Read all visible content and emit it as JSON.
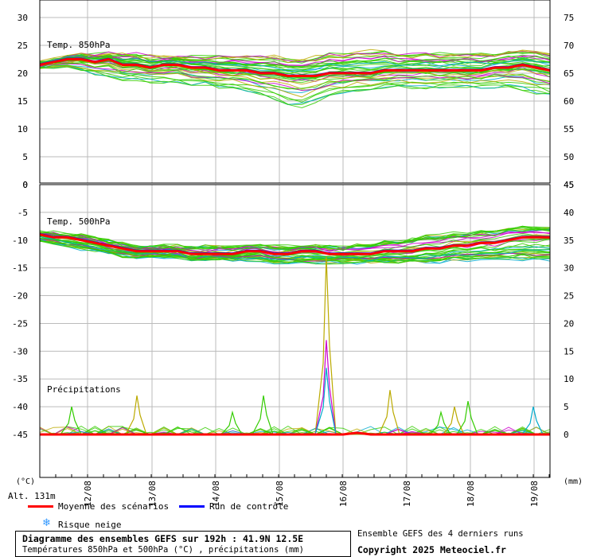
{
  "chart_data": {
    "type": "line",
    "footer": {
      "title": "Diagramme des ensembles GEFS sur 192h : 41.9N 12.5E",
      "subtitle": "Températures 850hPa et 500hPa (°C) , précipitations (mm)",
      "right_top": "Ensemble GEFS des 4 derniers runs",
      "copyright": "Copyright 2025 Meteociel.fr"
    },
    "left_unit": "(°C)",
    "right_unit": "(mm)",
    "altitude": "Alt. 131m",
    "x_ticks": [
      "12/08",
      "13/08",
      "14/08",
      "15/08",
      "16/08",
      "17/08",
      "18/08",
      "19/08"
    ],
    "legend": [
      {
        "label": "Moyenne des scénarios",
        "color": "#ff0000",
        "icon": "red-line"
      },
      {
        "label": "Run de contrôle",
        "color": "#0000ff",
        "icon": "blue-line"
      },
      {
        "label": "Risque neige",
        "color": "#3399ff",
        "icon": "snowflake-icon"
      }
    ],
    "panels": [
      {
        "name": "Temp. 850hPa",
        "left_ticks": [
          "30",
          "25",
          "20",
          "15",
          "10",
          "5",
          "0"
        ],
        "right_ticks": [
          "75",
          "70",
          "65",
          "60",
          "55",
          "50",
          "45"
        ],
        "ylim": [
          0,
          30
        ],
        "mean": [
          21.5,
          22,
          22.5,
          22.5,
          22,
          22.5,
          21.5,
          21.5,
          21,
          21.5,
          21.5,
          21,
          21,
          20.5,
          20.5,
          20.5,
          20,
          20,
          19.5,
          19.5,
          19.5,
          20,
          20,
          20,
          20,
          20.5,
          20.5,
          20.5,
          20.5,
          20.5,
          20.5,
          20.5,
          20.5,
          21,
          21,
          21.5,
          21,
          20.5
        ],
        "spread_low": [
          21,
          21,
          21,
          20.5,
          20,
          19.5,
          19,
          19,
          18.5,
          18.5,
          18.5,
          18,
          18,
          17.5,
          17.5,
          17,
          16.5,
          15.5,
          14.5,
          14,
          15,
          16,
          16.5,
          17,
          17,
          17.5,
          17.5,
          17.5,
          17.5,
          17.5,
          17.5,
          17.5,
          17.5,
          17.5,
          17.5,
          17,
          16.5,
          16
        ],
        "spread_high": [
          22,
          22.5,
          23,
          23.5,
          23.5,
          23.5,
          23.5,
          23.5,
          23,
          23,
          23,
          23,
          23,
          23,
          23,
          23,
          23,
          23,
          22.5,
          22.5,
          23,
          23.5,
          23.5,
          24,
          24,
          24,
          23.5,
          23.5,
          23.5,
          23.5,
          23.5,
          23.5,
          23.5,
          23.5,
          24,
          24,
          24,
          23.5
        ]
      },
      {
        "name": "Temp. 500hPa",
        "left_ticks": [
          "0",
          "-5",
          "-10",
          "-15",
          "-20",
          "-25",
          "-30",
          "-35",
          "-40",
          "-45"
        ],
        "right_ticks": [
          "45",
          "40",
          "35",
          "30",
          "25",
          "20",
          "15",
          "10",
          "5",
          "0"
        ],
        "ylim": [
          -45,
          0
        ],
        "mean": [
          -9,
          -9.5,
          -9.5,
          -10,
          -10.5,
          -11,
          -11.5,
          -12,
          -12,
          -12,
          -12,
          -12.5,
          -12.5,
          -12.5,
          -12.5,
          -12,
          -12,
          -12.5,
          -12.5,
          -12,
          -12,
          -12.5,
          -12.5,
          -12.5,
          -12.5,
          -12,
          -12,
          -12,
          -11.5,
          -11.5,
          -11,
          -11,
          -10.5,
          -10.5,
          -10,
          -9.5,
          -9.5,
          -9.5
        ],
        "spread_low": [
          -10,
          -10.5,
          -11,
          -11.5,
          -12,
          -12.5,
          -13,
          -13,
          -13,
          -13,
          -13,
          -13.5,
          -13.5,
          -13.5,
          -13.5,
          -13.5,
          -13.5,
          -14,
          -14,
          -14,
          -14,
          -14,
          -14,
          -14,
          -14,
          -14,
          -14,
          -14,
          -14,
          -14,
          -13.5,
          -13.5,
          -13.5,
          -13.5,
          -13.5,
          -13.5,
          -13.5,
          -13.5
        ],
        "spread_high": [
          -8.5,
          -8.5,
          -9,
          -9,
          -9.5,
          -10,
          -10.5,
          -11,
          -11,
          -11,
          -11,
          -11,
          -11,
          -11,
          -11,
          -11,
          -10.5,
          -11,
          -11,
          -11,
          -11,
          -11,
          -11,
          -10.5,
          -10.5,
          -10,
          -10,
          -9.5,
          -9,
          -9,
          -8.5,
          -8.5,
          -8,
          -8,
          -7.5,
          -7.5,
          -7.5,
          -7.5
        ]
      },
      {
        "name": "Précipitations",
        "ylim_mm": [
          0,
          45
        ],
        "mean": [
          0,
          0,
          0,
          0,
          0,
          0,
          0,
          0,
          0,
          0,
          0,
          0,
          0,
          0,
          0,
          0,
          0,
          0,
          0,
          0,
          0,
          0,
          0,
          0.3,
          0,
          0,
          0,
          0,
          0,
          0,
          0,
          0,
          0,
          0,
          0,
          0,
          0,
          0
        ],
        "peaks": [
          {
            "x": "11/08 18h",
            "mm": 5
          },
          {
            "x": "12/08 18h",
            "mm": 7
          },
          {
            "x": "14/08 12h",
            "mm": 4
          },
          {
            "x": "15/08 00h",
            "mm": 7
          },
          {
            "x": "15/08 18h",
            "mm": 32
          },
          {
            "x": "15/08 18h",
            "mm": 17
          },
          {
            "x": "15/08 18h",
            "mm": 12
          },
          {
            "x": "16/08 18h",
            "mm": 8
          },
          {
            "x": "17/08 12h",
            "mm": 4
          },
          {
            "x": "17/08 18h",
            "mm": 5
          },
          {
            "x": "18/08 00h",
            "mm": 6
          },
          {
            "x": "19/08 00h",
            "mm": 5
          }
        ]
      }
    ]
  }
}
